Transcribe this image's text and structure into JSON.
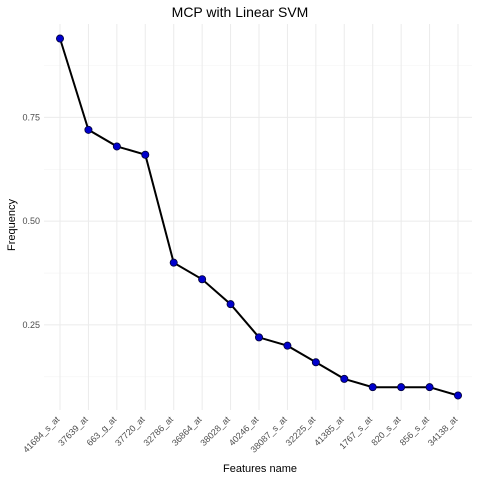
{
  "chart_data": {
    "type": "line",
    "title": "MCP with Linear SVM",
    "xlabel": "Features name",
    "ylabel": "Frequency",
    "categories": [
      "41684_s_at",
      "37639_at",
      "663_g_at",
      "37720_at",
      "32786_at",
      "36864_at",
      "38028_at",
      "40246_at",
      "38087_s_at",
      "32225_at",
      "41385_at",
      "1767_s_at",
      "820_s_at",
      "856_s_at",
      "34138_at"
    ],
    "values": [
      0.94,
      0.72,
      0.68,
      0.66,
      0.4,
      0.36,
      0.3,
      0.22,
      0.2,
      0.16,
      0.12,
      0.1,
      0.1,
      0.1,
      0.08
    ],
    "yticks": [
      0.25,
      0.5,
      0.75
    ],
    "ytick_labels": [
      "0.25",
      "0.50",
      "0.75"
    ],
    "ylim": [
      0.045,
      0.975
    ],
    "grid": true,
    "line_color": "#000000",
    "point_color": "#0000cc"
  }
}
